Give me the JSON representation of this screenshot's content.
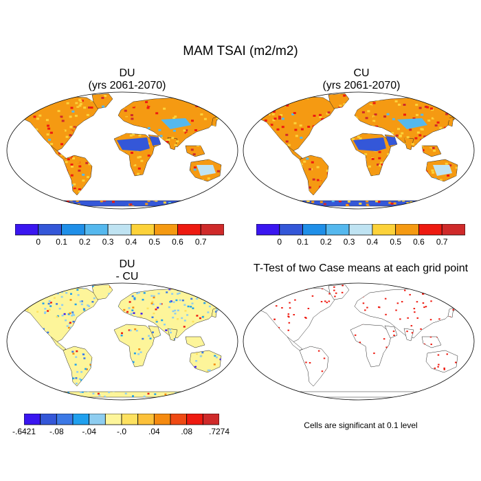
{
  "title": "MAM TSAI (m2/m2)",
  "panels": [
    {
      "id": "du",
      "title_line1": "DU",
      "title_line2": "(yrs 2061-2070)",
      "scheme": "abs"
    },
    {
      "id": "cu",
      "title_line1": "CU",
      "title_line2": "(yrs 2061-2070)",
      "scheme": "abs"
    },
    {
      "id": "diff",
      "title_line1": "DU",
      "title_line2": "- CU",
      "scheme": "diff"
    },
    {
      "id": "ttest",
      "title_line1": "T-Test of two Case means at each grid point",
      "title_line2": "",
      "scheme": "ttest"
    }
  ],
  "colorbar_abs": {
    "colors": [
      "#3a16f0",
      "#3457d8",
      "#1f8fe8",
      "#55b8ee",
      "#bfe3f2",
      "#fcd23a",
      "#f59a12",
      "#ee1a10",
      "#cf2a2a"
    ],
    "labels": [
      "0",
      "0.1",
      "0.2",
      "0.3",
      "0.4",
      "0.5",
      "0.6",
      "0.7"
    ]
  },
  "colorbar_diff": {
    "colors": [
      "#3a16f0",
      "#3457d8",
      "#3c79e6",
      "#20a0ee",
      "#8ecdf0",
      "#fdf59a",
      "#fde160",
      "#fcc13a",
      "#f58a10",
      "#ef4a14",
      "#ee1a10",
      "#cf2a2a"
    ],
    "labels": [
      "-.6421",
      "-.08",
      "-.04",
      "-.0",
      ".04",
      ".08",
      ".7274"
    ]
  },
  "note": "Cells are significant at 0.1 level",
  "colors": {
    "land_high": "#f59a12",
    "land_mid": "#fcd23a",
    "sahara": "#3457d8",
    "antarctica": "#3457d8",
    "diff_land": "#fdf59a",
    "significant": "#ee1a10"
  }
}
